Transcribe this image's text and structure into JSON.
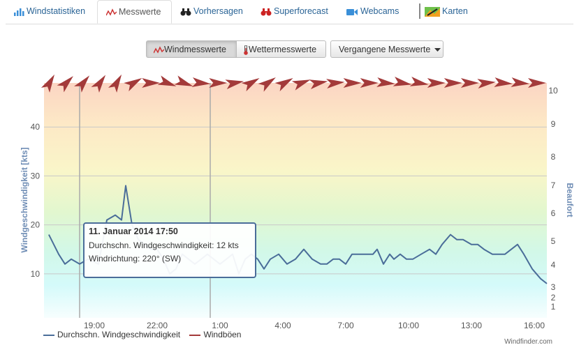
{
  "tabs": [
    {
      "label": "Windstatistiken",
      "icon": "bar-chart-icon",
      "active": false
    },
    {
      "label": "Messwerte",
      "icon": "line-chart-icon",
      "active": true
    },
    {
      "label": "Vorhersagen",
      "icon": "binoculars-icon",
      "active": false
    },
    {
      "label": "Superforecast",
      "icon": "binoculars-red-icon",
      "active": false
    },
    {
      "label": "Webcams",
      "icon": "camera-icon",
      "active": false
    },
    {
      "label": "Karten",
      "icon": "map-icon",
      "active": false
    }
  ],
  "buttons": {
    "wind": "Windmesswerte",
    "weather": "Wettermesswerte",
    "past": "Vergangene Messwerte"
  },
  "tooltip": {
    "title": "11. Januar 2014 17:50",
    "line1": "Durchschn. Windgeschwindigkeit: 12 kts",
    "line2": "Windrichtung: 220° (SW)"
  },
  "credits": "Windfinder.com",
  "colors": {
    "avg": "#4a6d99",
    "gust": "#a33a3a",
    "arrow": "#a33a3a",
    "axis_title": "#6f8db5"
  },
  "chart_data": {
    "type": "line",
    "ylabel": "Windgeschwindigkeit [kts]",
    "ylabel_right": "Beaufort",
    "ylim": [
      1,
      49
    ],
    "y_ticks": [
      10,
      20,
      30,
      40
    ],
    "beaufort_ticks": [
      1,
      2,
      3,
      4,
      5,
      6,
      7,
      8,
      9,
      10
    ],
    "x_ticks": [
      "19:00",
      "22:00",
      "1:00",
      "4:00",
      "7:00",
      "10:00",
      "13:00",
      "16:00"
    ],
    "xlim_hours": [
      16.6,
      40.6
    ],
    "tick_hours": [
      19,
      22,
      25,
      28,
      31,
      34,
      37,
      40
    ],
    "series": [
      {
        "name": "Durchschn. Windgeschwindigkeit",
        "x": [
          16.83,
          17.3,
          17.6,
          17.9,
          18.3,
          18.7,
          19.2,
          19.6,
          20.0,
          20.3,
          20.5,
          20.8,
          21.1,
          21.4,
          21.7,
          22.0,
          22.3,
          22.6,
          22.9,
          23.2,
          23.5,
          23.8,
          24.1,
          24.4,
          24.7,
          25.0,
          25.3,
          25.6,
          25.9,
          26.2,
          26.5,
          26.8,
          27.1,
          27.4,
          27.8,
          28.2,
          28.6,
          29.0,
          29.4,
          29.8,
          30.1,
          30.4,
          30.7,
          31.0,
          31.3,
          31.6,
          32.0,
          32.3,
          32.5,
          32.8,
          33.1,
          33.3,
          33.6,
          33.9,
          34.2,
          34.6,
          35.0,
          35.3,
          35.6,
          36.0,
          36.3,
          36.6,
          37.0,
          37.3,
          37.6,
          38.0,
          38.3,
          38.6,
          38.9,
          39.2,
          39.5,
          39.9,
          40.3,
          40.6
        ],
        "y": [
          18,
          14,
          12,
          13,
          12,
          13,
          12,
          21,
          22,
          21,
          28,
          20,
          17,
          16,
          15,
          15,
          13,
          10,
          11,
          14,
          13,
          12,
          13,
          14,
          13,
          12,
          13,
          14,
          10,
          13,
          14,
          13,
          11,
          13,
          14,
          12,
          13,
          15,
          13,
          12,
          12,
          13,
          13,
          12,
          14,
          14,
          14,
          14,
          15,
          12,
          14,
          13,
          14,
          13,
          13,
          14,
          15,
          14,
          16,
          18,
          17,
          17,
          16,
          16,
          15,
          14,
          14,
          14,
          15,
          16,
          14,
          11,
          9,
          8
        ]
      },
      {
        "name": "Windböen"
      }
    ],
    "wind_direction_deg": [
      30,
      45,
      40,
      35,
      30,
      60,
      90,
      110,
      110,
      95,
      90,
      80,
      60,
      55,
      60,
      70,
      80,
      85,
      90,
      90,
      95,
      100,
      100,
      90,
      90,
      90,
      85,
      95,
      95,
      90
    ]
  }
}
